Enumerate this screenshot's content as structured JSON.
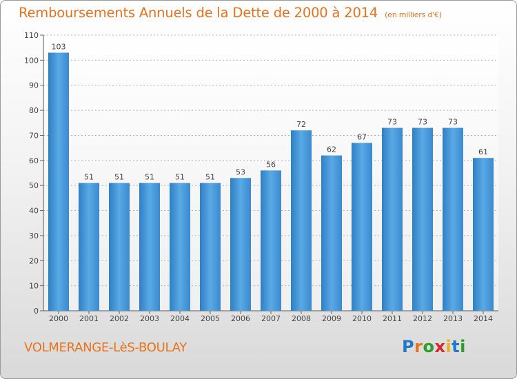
{
  "header": {
    "title": "Remboursements Annuels de la Dette de 2000 à 2014",
    "subtitle": "(en milliers d'€)"
  },
  "footer": {
    "city": "VOLMERANGE-LèS-BOULAY",
    "brand": "Proxiti",
    "brand_letters": [
      "P",
      "r",
      "o",
      "x",
      "i",
      "t",
      "i"
    ],
    "brand_colors": [
      "#1f78c8",
      "#e8721c",
      "#2aa02a",
      "#d62728",
      "#e8b01c",
      "#1f78c8",
      "#2aa02a"
    ]
  },
  "chart_data": {
    "type": "bar",
    "title": "Remboursements Annuels de la Dette de 2000 à 2014",
    "subtitle": "(en milliers d'€)",
    "categories": [
      "2000",
      "2001",
      "2002",
      "2003",
      "2004",
      "2005",
      "2006",
      "2007",
      "2008",
      "2009",
      "2010",
      "2011",
      "2012",
      "2013",
      "2014"
    ],
    "values": [
      103,
      51,
      51,
      51,
      51,
      51,
      53,
      56,
      72,
      62,
      67,
      73,
      73,
      73,
      61
    ],
    "xlabel": "",
    "ylabel": "",
    "ylim": [
      0,
      110
    ],
    "yticks": [
      0,
      10,
      20,
      30,
      40,
      50,
      60,
      70,
      80,
      90,
      100,
      110
    ],
    "grid": true,
    "legend": "none",
    "colors": {
      "bar": "#3d8fd6",
      "bar_light": "#64b2ec",
      "grid": "#b4b4b4",
      "axis_text": "#444444",
      "title": "#e8721c"
    }
  }
}
